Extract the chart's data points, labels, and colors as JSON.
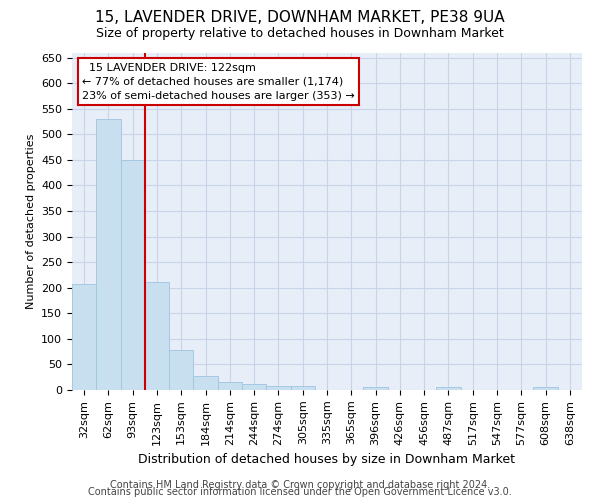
{
  "title1": "15, LAVENDER DRIVE, DOWNHAM MARKET, PE38 9UA",
  "title2": "Size of property relative to detached houses in Downham Market",
  "xlabel": "Distribution of detached houses by size in Downham Market",
  "ylabel": "Number of detached properties",
  "footer1": "Contains HM Land Registry data © Crown copyright and database right 2024.",
  "footer2": "Contains public sector information licensed under the Open Government Licence v3.0.",
  "annotation_line1": "  15 LAVENDER DRIVE: 122sqm",
  "annotation_line2": "← 77% of detached houses are smaller (1,174)",
  "annotation_line3": "23% of semi-detached houses are larger (353) →",
  "bar_color": "#c8dff0",
  "bar_edge_color": "#a0c4e0",
  "vline_color": "#cc0000",
  "annotation_box_edgecolor": "#cc0000",
  "categories": [
    "32sqm",
    "62sqm",
    "93sqm",
    "123sqm",
    "153sqm",
    "184sqm",
    "214sqm",
    "244sqm",
    "274sqm",
    "305sqm",
    "335sqm",
    "365sqm",
    "396sqm",
    "426sqm",
    "456sqm",
    "487sqm",
    "517sqm",
    "547sqm",
    "577sqm",
    "608sqm",
    "638sqm"
  ],
  "values": [
    207,
    530,
    450,
    212,
    78,
    27,
    15,
    11,
    7,
    8,
    0,
    0,
    6,
    0,
    0,
    5,
    0,
    0,
    0,
    5,
    0
  ],
  "ylim": [
    0,
    660
  ],
  "yticks": [
    0,
    50,
    100,
    150,
    200,
    250,
    300,
    350,
    400,
    450,
    500,
    550,
    600,
    650
  ],
  "vline_x": 2.5,
  "grid_color": "#c8d4e8",
  "bg_color": "#e8eef8",
  "title1_fontsize": 11,
  "title2_fontsize": 9,
  "xlabel_fontsize": 9,
  "ylabel_fontsize": 8,
  "tick_fontsize": 8,
  "annotation_fontsize": 8,
  "footer_fontsize": 7
}
